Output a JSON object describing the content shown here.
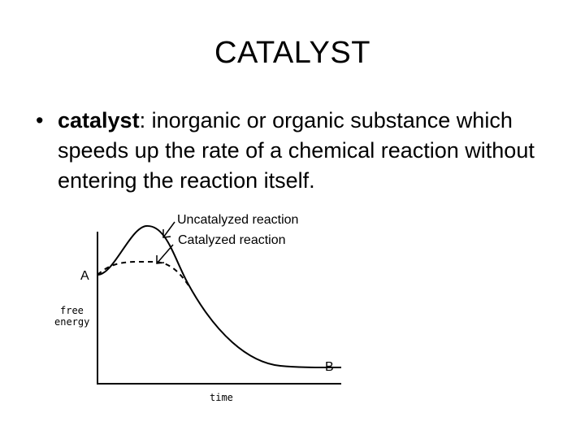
{
  "slide": {
    "title": "CATALYST",
    "bullet": {
      "marker": "•",
      "term": "catalyst",
      "definition": ": inorganic or organic substance which speeds up the rate of a chemical reaction without entering the reaction itself."
    }
  },
  "diagram": {
    "labels": {
      "uncatalyzed": "Uncatalyzed reaction",
      "catalyzed": "Catalyzed reaction",
      "point_a": "A",
      "point_b": "B",
      "y_axis_line1": "free",
      "y_axis_line2": "energy",
      "x_axis": "time"
    }
  }
}
